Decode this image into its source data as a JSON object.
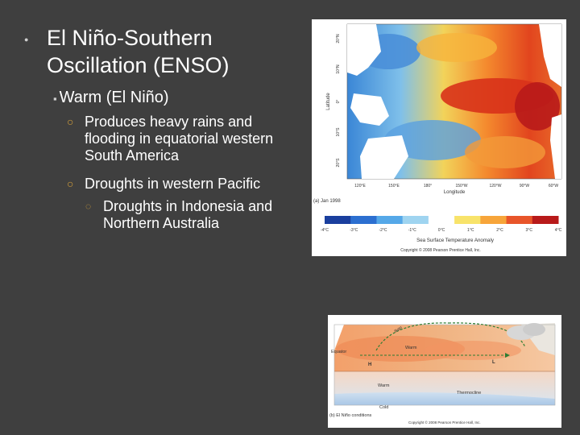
{
  "title": "El Niño-Southern Oscillation (ENSO)",
  "subheading": "Warm (El Niño)",
  "bullets": [
    "Produces heavy rains and flooding in equatorial western South America",
    "Droughts in western Pacific"
  ],
  "sub_bullet": "Droughts in Indonesia and Northern Australia",
  "figure_map": {
    "panel_label": "(a)  Jan 1998",
    "lat_ticks": [
      "20°N",
      "10°N",
      "0°",
      "10°S",
      "20°S"
    ],
    "lat_label": "Latitude",
    "lon_ticks": [
      "120°E",
      "150°E",
      "180°",
      "150°W",
      "120°W",
      "90°W",
      "60°W"
    ],
    "lon_label": "Longitude",
    "scale_ticks": [
      "-4°C",
      "-3°C",
      "-2°C",
      "-1°C",
      "0°C",
      "1°C",
      "2°C",
      "3°C",
      "4°C"
    ],
    "scale_title": "Sea Surface Temperature Anomaly",
    "copyright": "Copyright © 2008 Pearson Prentice Hall, Inc.",
    "scale_colors": [
      "#1a3f9e",
      "#2c6fd0",
      "#55a8e8",
      "#9fd4f0",
      "#ffffff",
      "#f8e36a",
      "#f7a53a",
      "#e8552a",
      "#b81a1a"
    ]
  },
  "figure_diagram": {
    "labels": {
      "equator": "Equator",
      "warm_top": "Warm",
      "high": "H",
      "low": "L",
      "warm_deep": "Warm",
      "thermocline": "Thermocline",
      "cold": "Cold",
      "panel": "(b)  El Niño conditions",
      "copyright": "Copyright © 2008 Pearson Prentice Hall, Inc.",
      "rain": "Rain"
    }
  }
}
